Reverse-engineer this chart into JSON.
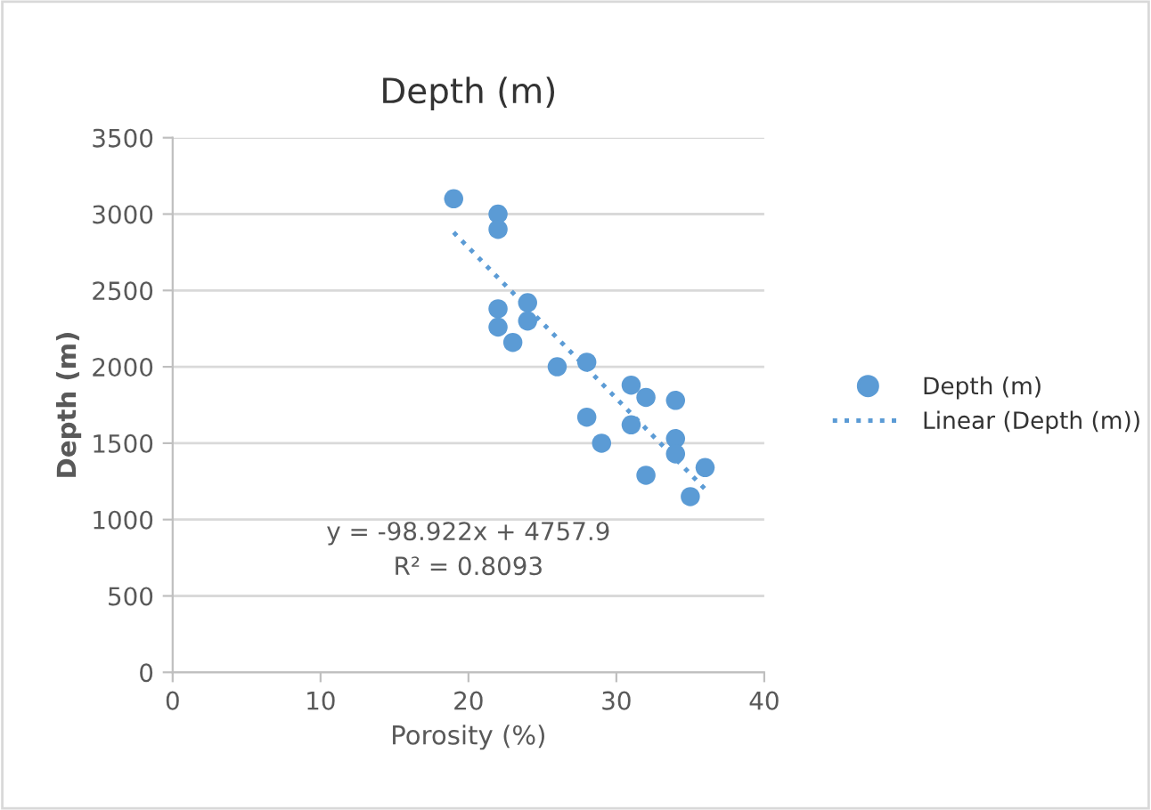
{
  "chart_data": {
    "type": "scatter",
    "title": "Depth (m)",
    "xlabel": "Porosity (%)",
    "ylabel": "Depth (m)",
    "xlim": [
      0,
      40
    ],
    "xticks": [
      0,
      10,
      20,
      30,
      40
    ],
    "ylim": [
      0,
      3500
    ],
    "yticks": [
      0,
      500,
      1000,
      1500,
      2000,
      2500,
      3000,
      3500
    ],
    "grid": "y",
    "legend": "right",
    "series": [
      {
        "name": "Depth (m)",
        "marker": "circle",
        "color": "#5b9bd5",
        "x": [
          19,
          22,
          22,
          22,
          24,
          22,
          24,
          23,
          26,
          28,
          31,
          32,
          34,
          28,
          31,
          29,
          34,
          34,
          36,
          32,
          35
        ],
        "values": [
          3100,
          3000,
          2900,
          2380,
          2420,
          2260,
          2300,
          2160,
          2000,
          2030,
          1880,
          1800,
          1780,
          1670,
          1620,
          1500,
          1530,
          1430,
          1340,
          1290,
          1150
        ]
      },
      {
        "name": "Linear (Depth (m))",
        "type": "line",
        "marker": "none",
        "line_style": "dotted",
        "color": "#5b9bd5",
        "x": [
          19,
          36
        ],
        "values": [
          2880,
          1200
        ]
      }
    ],
    "annotations": [
      "y = -98.922x + 4757.9",
      "R² = 0.8093"
    ]
  }
}
